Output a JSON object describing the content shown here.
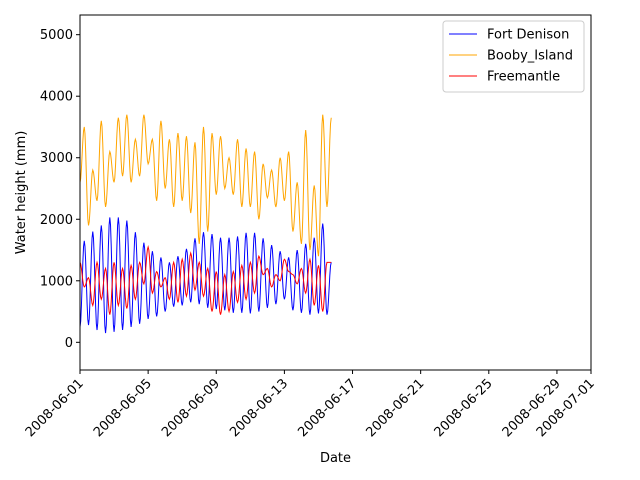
{
  "chart_data": {
    "type": "line",
    "title": "",
    "xlabel": "Date",
    "ylabel": "Water height (mm)",
    "x_range": [
      "2008-06-01",
      "2008-07-01"
    ],
    "ylim": [
      -450,
      5320
    ],
    "x_ticks": [
      "2008-06-01",
      "2008-06-05",
      "2008-06-09",
      "2008-06-13",
      "2008-06-17",
      "2008-06-21",
      "2008-06-25",
      "2008-06-29",
      "2008-07-01"
    ],
    "y_ticks": [
      0,
      1000,
      2000,
      3000,
      4000,
      5000
    ],
    "grid": false,
    "legend_position": "upper right",
    "series": [
      {
        "name": "Fort Denison",
        "color": "#0000ff",
        "sampling": "every 6 hours from 2008-06-01 00:00, alternating high and low water",
        "values": [
          250,
          1650,
          280,
          1800,
          200,
          1900,
          150,
          2030,
          170,
          2030,
          200,
          1980,
          250,
          1790,
          300,
          1620,
          380,
          1480,
          420,
          1380,
          500,
          1300,
          580,
          1400,
          600,
          1520,
          650,
          1690,
          620,
          1790,
          560,
          1760,
          540,
          1700,
          520,
          1700,
          480,
          1720,
          480,
          1780,
          470,
          1780,
          500,
          1690,
          560,
          1580,
          620,
          1480,
          700,
          1380,
          520,
          1500,
          480,
          1600,
          450,
          1700,
          470,
          1930,
          450,
          1300
        ]
      },
      {
        "name": "Booby_Island",
        "color": "#ffa500",
        "sampling": "every 6 hours from 2008-06-01 00:00, alternating high and low water",
        "values": [
          2600,
          3500,
          1900,
          2800,
          2300,
          3600,
          2200,
          3100,
          2600,
          3650,
          2700,
          3700,
          2600,
          3300,
          2700,
          3700,
          2900,
          3300,
          2300,
          3600,
          2500,
          3300,
          2200,
          3400,
          2300,
          3350,
          2100,
          3250,
          1600,
          3500,
          1800,
          3400,
          2400,
          3350,
          2500,
          3000,
          2400,
          3300,
          2200,
          3150,
          2200,
          3100,
          2000,
          2900,
          2350,
          2800,
          2200,
          3000,
          2300,
          3100,
          1800,
          2600,
          1600,
          3450,
          1500,
          2550,
          1400,
          3700,
          2200,
          3650
        ]
      },
      {
        "name": "Freemantle",
        "color": "#ff0000",
        "sampling": "every 6 hours from 2008-06-01 00:00",
        "values": [
          1300,
          900,
          1050,
          600,
          1300,
          700,
          1200,
          450,
          1300,
          600,
          1200,
          550,
          1250,
          700,
          1300,
          950,
          1550,
          800,
          1150,
          900,
          1050,
          700,
          1300,
          650,
          1350,
          750,
          1450,
          850,
          1300,
          750,
          1200,
          500,
          1150,
          450,
          1100,
          500,
          1150,
          650,
          1250,
          700,
          1300,
          800,
          1400,
          1100,
          1200,
          900,
          1100,
          1000,
          1350,
          1150,
          1100,
          950,
          1200,
          800,
          1350,
          600,
          1250,
          500,
          1300,
          1300
        ]
      }
    ]
  }
}
